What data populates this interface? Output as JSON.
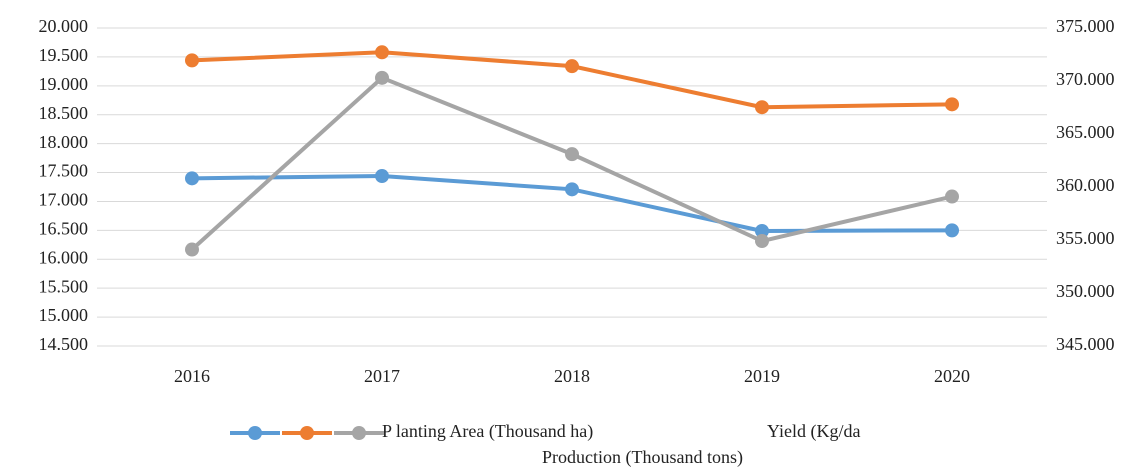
{
  "chart_data": {
    "type": "line",
    "categories": [
      "2016",
      "2017",
      "2018",
      "2019",
      "2020"
    ],
    "series": [
      {
        "name": "P lanting Area (Thousand ha)",
        "color": "#5b9bd5",
        "values": [
          17.4,
          17.44,
          17.21,
          16.49,
          16.5
        ],
        "axis": "y"
      },
      {
        "name": "Yield (Kg/da",
        "color": "#ed7d31",
        "values": [
          19.44,
          19.58,
          19.34,
          18.63,
          18.68
        ],
        "axis": "y"
      },
      {
        "name": "Production (Thousand tons)",
        "color": "#a5a5a5",
        "values": [
          354.1,
          370.3,
          363.1,
          354.9,
          359.1
        ],
        "axis": "y2"
      }
    ],
    "ylim": [
      14.5,
      20
    ],
    "yticks": [
      {
        "value": 14.5,
        "label": "14.500"
      },
      {
        "value": 15,
        "label": "15.000"
      },
      {
        "value": 15.5,
        "label": "15.500"
      },
      {
        "value": 16,
        "label": "16.000"
      },
      {
        "value": 16.5,
        "label": "16.500"
      },
      {
        "value": 17,
        "label": "17.000"
      },
      {
        "value": 17.5,
        "label": "17.500"
      },
      {
        "value": 18,
        "label": "18.000"
      },
      {
        "value": 18.5,
        "label": "18.500"
      },
      {
        "value": 19,
        "label": "19.000"
      },
      {
        "value": 19.5,
        "label": "19.500"
      },
      {
        "value": 20,
        "label": "20.000"
      }
    ],
    "y2lim": [
      345,
      375
    ],
    "y2ticks": [
      {
        "value": 345,
        "label": "345.000"
      },
      {
        "value": 350,
        "label": "350.000"
      },
      {
        "value": 355,
        "label": "355.000"
      },
      {
        "value": 360,
        "label": "360.000"
      },
      {
        "value": 365,
        "label": "365.000"
      },
      {
        "value": 370,
        "label": "370.000"
      },
      {
        "value": 375,
        "label": "375.000"
      }
    ],
    "grid": true,
    "legend": "bottom"
  }
}
